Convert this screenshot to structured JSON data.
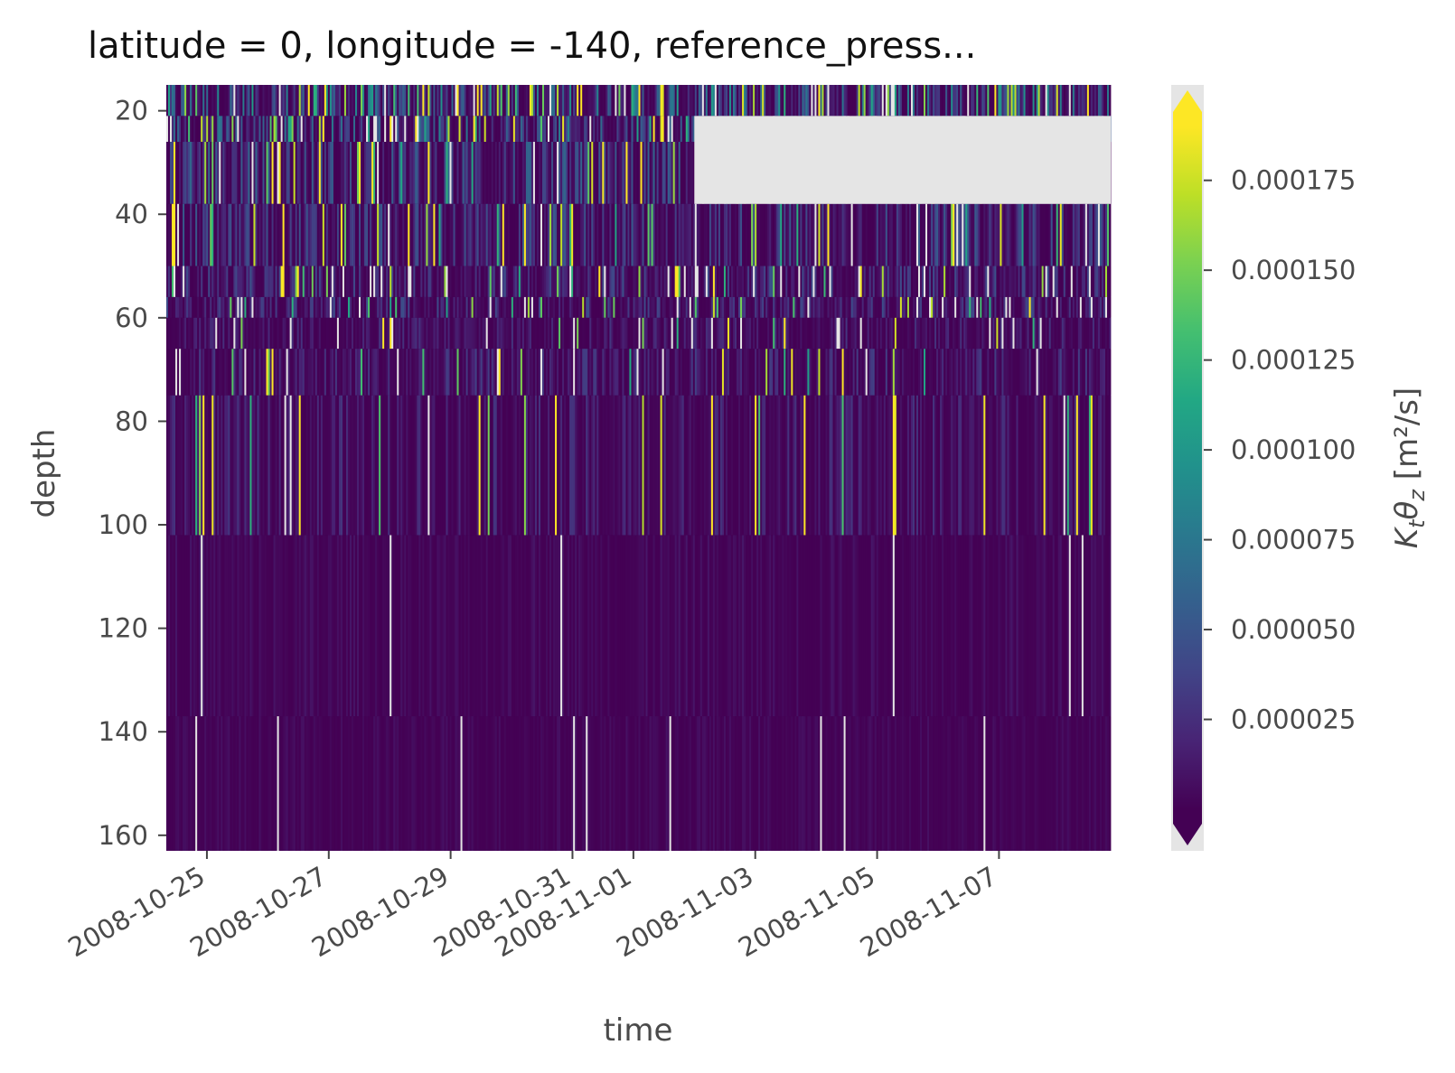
{
  "chart_data": {
    "type": "heatmap",
    "title": "latitude = 0, longitude = -140, reference_press...",
    "xlabel": "time",
    "ylabel": "depth",
    "colorbar_label": "Kₜθ_z [m²/s]",
    "colorbar_label_parts": {
      "main": "K",
      "sub1": "t",
      "mid": "θ",
      "sub2": "z",
      "unit": " [m²/s]"
    },
    "colormap": "viridis",
    "colorbar_extend": "both",
    "x_range": [
      "2008-10-24T08:00",
      "2008-11-08T20:00"
    ],
    "y_range": [
      15,
      163
    ],
    "y_inverted": true,
    "color_range": [
      0,
      0.00019
    ],
    "x_ticks": [
      {
        "date": "2008-10-25",
        "label": "2008-10-25"
      },
      {
        "date": "2008-10-27",
        "label": "2008-10-27"
      },
      {
        "date": "2008-10-29",
        "label": "2008-10-29"
      },
      {
        "date": "2008-10-31",
        "label": "2008-10-31"
      },
      {
        "date": "2008-11-01",
        "label": "2008-11-01"
      },
      {
        "date": "2008-11-03",
        "label": "2008-11-03"
      },
      {
        "date": "2008-11-05",
        "label": "2008-11-05"
      },
      {
        "date": "2008-11-07",
        "label": "2008-11-07"
      }
    ],
    "y_ticks": [
      20,
      40,
      60,
      80,
      100,
      120,
      140,
      160
    ],
    "y_tick_labels": [
      "20",
      "40",
      "60",
      "80",
      "100",
      "120",
      "140",
      "160"
    ],
    "colorbar_ticks": [
      2.5e-05,
      5e-05,
      7.5e-05,
      0.0001,
      0.000125,
      0.00015,
      0.000175
    ],
    "colorbar_tick_labels": [
      "0.000025",
      "0.000050",
      "0.000075",
      "0.000100",
      "0.000125",
      "0.000150",
      "0.000175"
    ],
    "depth_bands": [
      {
        "depth": [
          15,
          21
        ],
        "mean": 3.5e-05,
        "hot_fraction": 0.12,
        "gap_fraction": 0.04
      },
      {
        "depth": [
          21,
          26
        ],
        "mean": 2.8e-05,
        "hot_fraction": 0.1,
        "gap_fraction": 0.05
      },
      {
        "depth": [
          26,
          38
        ],
        "mean": 2.2e-05,
        "hot_fraction": 0.08,
        "gap_fraction": 0.03
      },
      {
        "depth": [
          38,
          50
        ],
        "mean": 1.8e-05,
        "hot_fraction": 0.06,
        "gap_fraction": 0.03
      },
      {
        "depth": [
          50,
          56
        ],
        "mean": 1.6e-05,
        "hot_fraction": 0.05,
        "gap_fraction": 0.04
      },
      {
        "depth": [
          56,
          60
        ],
        "mean": 1.5e-05,
        "hot_fraction": 0.05,
        "gap_fraction": 0.03
      },
      {
        "depth": [
          60,
          66
        ],
        "mean": 1e-05,
        "hot_fraction": 0.03,
        "gap_fraction": 0.03
      },
      {
        "depth": [
          66,
          75
        ],
        "mean": 1.2e-05,
        "hot_fraction": 0.04,
        "gap_fraction": 0.03
      },
      {
        "depth": [
          75,
          102
        ],
        "mean": 1e-05,
        "hot_fraction": 0.03,
        "gap_fraction": 0.01
      },
      {
        "depth": [
          102,
          137
        ],
        "mean": 4e-06,
        "hot_fraction": 0.0,
        "gap_fraction": 0.02
      },
      {
        "depth": [
          137,
          163
        ],
        "mean": 3e-06,
        "hot_fraction": 0.0,
        "gap_fraction": 0.02
      }
    ],
    "missing_region": {
      "time": [
        "2008-11-02T00:00",
        "2008-11-08T20:00"
      ],
      "depth": [
        21,
        38
      ]
    }
  }
}
